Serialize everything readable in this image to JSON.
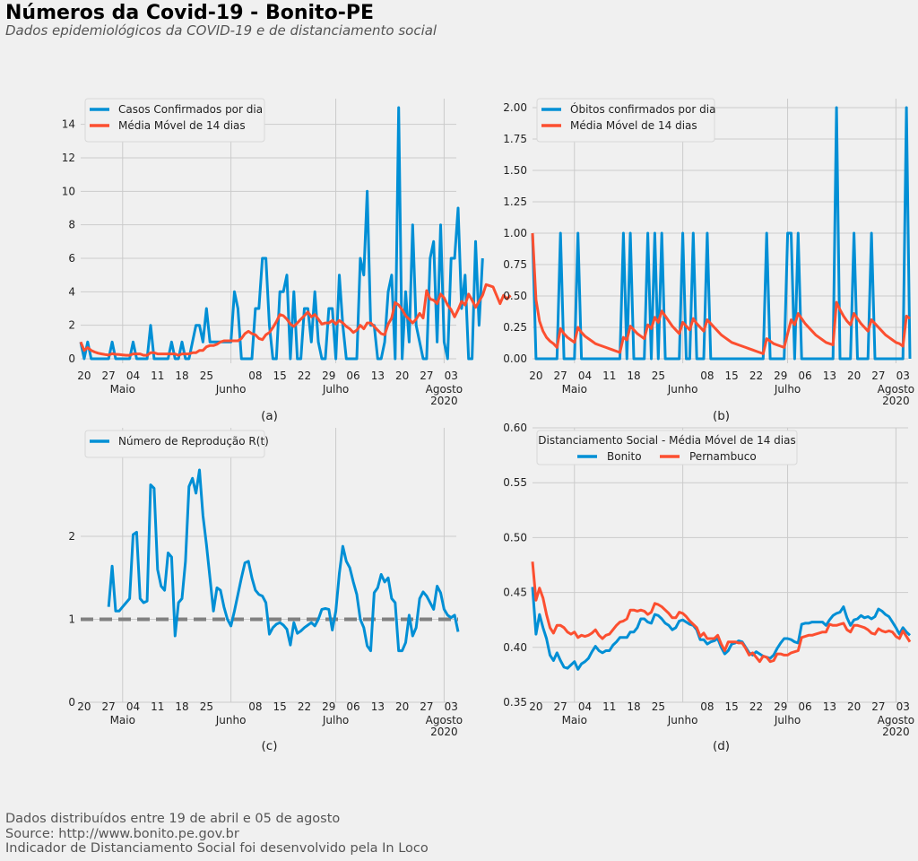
{
  "header": {
    "title": "Números da Covid-19 - Bonito-PE",
    "subtitle": "Dados epidemiológicos  da COVID-19 e de distanciamento social"
  },
  "footer": {
    "lines": [
      "Dados distribuídos entre 19 de abril e 05 de agosto",
      "Source: http://www.bonito.pe.gov.br",
      "Indicador de Distanciamento Social foi desenvolvido pela In Loco"
    ]
  },
  "colors": {
    "blue": "#008fd5",
    "red": "#fc4f30",
    "gray": "#808080",
    "grid": "#cbcbcb",
    "background": "#f0f0f0"
  },
  "chart_data": [
    {
      "id": "a",
      "type": "line",
      "caption": "(a)",
      "start_date": "2020-04-19",
      "x_day_ticks": [
        "20",
        "27",
        "04",
        "11",
        "18",
        "25",
        "08",
        "15",
        "22",
        "29",
        "06",
        "13",
        "20",
        "27",
        "03"
      ],
      "x_day_tick_dates": [
        "2020-04-20",
        "2020-04-27",
        "2020-05-04",
        "2020-05-11",
        "2020-05-18",
        "2020-05-25",
        "2020-06-08",
        "2020-06-15",
        "2020-06-22",
        "2020-06-29",
        "2020-07-06",
        "2020-07-13",
        "2020-07-20",
        "2020-07-27",
        "2020-08-03"
      ],
      "x_month_ticks": [
        {
          "label": "Maio",
          "date": "2020-05-01"
        },
        {
          "label": "Junho",
          "date": "2020-06-01"
        },
        {
          "label": "Julho",
          "date": "2020-07-01"
        },
        {
          "label": "Agosto\n2020",
          "date": "2020-08-01"
        }
      ],
      "ylim": [
        -0.7,
        15.5
      ],
      "yticks": [
        0,
        2,
        4,
        6,
        8,
        10,
        12,
        14
      ],
      "ytick_labels": [
        "0",
        "2",
        "4",
        "6",
        "8",
        "10",
        "12",
        "14"
      ],
      "legend": "top-left",
      "series": [
        {
          "name": "Casos Confirmados por dia",
          "color": "#008fd5",
          "values": [
            1,
            0,
            1,
            0,
            0,
            0,
            0,
            0,
            0,
            1,
            0,
            0,
            0,
            0,
            0,
            1,
            0,
            0,
            0,
            0,
            2,
            0,
            0,
            0,
            0,
            0,
            1,
            0,
            0,
            1,
            0,
            0,
            1,
            2,
            2,
            1,
            3,
            1,
            1,
            1,
            1,
            1,
            1,
            1,
            4,
            3,
            0,
            0,
            0,
            0,
            3,
            3,
            6,
            6,
            2,
            0,
            0,
            4,
            4,
            5,
            0,
            4,
            0,
            0,
            3,
            3,
            1,
            4,
            1,
            0,
            0,
            3,
            3,
            0,
            5,
            2,
            0,
            0,
            0,
            0,
            6,
            5,
            10,
            2,
            2,
            0,
            0,
            1,
            4,
            5,
            0,
            15,
            0,
            4,
            1,
            8,
            2,
            1,
            0,
            0,
            6,
            7,
            1,
            8,
            1,
            0,
            6,
            6,
            9,
            3,
            5,
            0,
            0,
            7,
            2,
            6
          ]
        },
        {
          "name": "Média Móvel de 14 dias",
          "color": "#fc4f30",
          "values": [
            1,
            0.5,
            0.67,
            0.5,
            0.4,
            0.33,
            0.29,
            0.25,
            0.22,
            0.3,
            0.27,
            0.25,
            0.23,
            0.21,
            0.21,
            0.29,
            0.29,
            0.29,
            0.21,
            0.21,
            0.36,
            0.36,
            0.29,
            0.29,
            0.29,
            0.29,
            0.29,
            0.29,
            0.21,
            0.29,
            0.29,
            0.29,
            0.36,
            0.36,
            0.5,
            0.5,
            0.71,
            0.79,
            0.79,
            0.86,
            1.0,
            1.07,
            1.07,
            1.07,
            1.07,
            1.07,
            1.21,
            1.5,
            1.64,
            1.5,
            1.43,
            1.21,
            1.14,
            1.43,
            1.57,
            1.86,
            2.21,
            2.64,
            2.57,
            2.36,
            2.07,
            1.93,
            2.14,
            2.36,
            2.57,
            2.79,
            2.5,
            2.64,
            2.36,
            2.07,
            2.14,
            2.14,
            2.29,
            2.07,
            2.29,
            2.14,
            1.93,
            1.79,
            1.57,
            1.71,
            2.0,
            1.79,
            2.14,
            2.14,
            1.93,
            1.71,
            1.5,
            1.43,
            2.07,
            2.43,
            3.36,
            3.21,
            2.93,
            2.57,
            2.36,
            2.14,
            2.36,
            2.71,
            2.43,
            4.07,
            3.57,
            3.5,
            3.29,
            3.86,
            3.64,
            3.21,
            2.93,
            2.5,
            2.93,
            3.43,
            3.21,
            3.86,
            3.5,
            3.07,
            3.43,
            3.79,
            4.43,
            4.36,
            4.29,
            3.79,
            3.29,
            3.79,
            3.57,
            3.79
          ]
        }
      ]
    },
    {
      "id": "b",
      "type": "line",
      "caption": "(b)",
      "start_date": "2020-04-19",
      "x_day_ticks": [
        "20",
        "27",
        "04",
        "11",
        "18",
        "25",
        "08",
        "15",
        "22",
        "29",
        "06",
        "13",
        "20",
        "27",
        "03"
      ],
      "x_month_ticks": [
        {
          "label": "Maio",
          "date": "2020-05-01"
        },
        {
          "label": "Junho",
          "date": "2020-06-01"
        },
        {
          "label": "Julho",
          "date": "2020-07-01"
        },
        {
          "label": "Agosto\n2020",
          "date": "2020-08-01"
        }
      ],
      "ylim": [
        -0.05,
        2.1
      ],
      "yticks": [
        0,
        0.25,
        0.5,
        0.75,
        1.0,
        1.25,
        1.5,
        1.75,
        2.0
      ],
      "ytick_labels": [
        "0.00",
        "0.25",
        "0.50",
        "0.75",
        "1.00",
        "1.25",
        "1.50",
        "1.75",
        "2.00"
      ],
      "legend": "top-left",
      "series": [
        {
          "name": "Óbitos confirmados por dia",
          "color": "#008fd5",
          "values": [
            1,
            0,
            0,
            0,
            0,
            0,
            0,
            0,
            1,
            0,
            0,
            0,
            0,
            1,
            0,
            0,
            0,
            0,
            0,
            0,
            0,
            0,
            0,
            0,
            0,
            0,
            1,
            0,
            1,
            0,
            0,
            0,
            0,
            1,
            0,
            1,
            0,
            1,
            0,
            0,
            0,
            0,
            0,
            1,
            0,
            0,
            1,
            0,
            0,
            0,
            1,
            0,
            0,
            0,
            0,
            0,
            0,
            0,
            0,
            0,
            0,
            0,
            0,
            0,
            0,
            0,
            0,
            1,
            0,
            0,
            0,
            0,
            0,
            1,
            1,
            0,
            1,
            0,
            0,
            0,
            0,
            0,
            0,
            0,
            0,
            0,
            0,
            2,
            0,
            0,
            0,
            0,
            1,
            0,
            0,
            0,
            0,
            1,
            0,
            0,
            0,
            0,
            0,
            0,
            0,
            0,
            0,
            2,
            0
          ]
        },
        {
          "name": "Média Móvel de 14 dias",
          "color": "#fc4f30",
          "values": [
            1.0,
            0.47,
            0.3,
            0.22,
            0.17,
            0.14,
            0.12,
            0.09,
            0.24,
            0.2,
            0.17,
            0.15,
            0.13,
            0.25,
            0.21,
            0.18,
            0.16,
            0.14,
            0.12,
            0.11,
            0.1,
            0.09,
            0.08,
            0.07,
            0.06,
            0.05,
            0.17,
            0.15,
            0.26,
            0.23,
            0.2,
            0.18,
            0.16,
            0.27,
            0.24,
            0.33,
            0.29,
            0.38,
            0.34,
            0.3,
            0.26,
            0.23,
            0.2,
            0.29,
            0.26,
            0.23,
            0.32,
            0.28,
            0.25,
            0.22,
            0.31,
            0.28,
            0.25,
            0.22,
            0.19,
            0.17,
            0.15,
            0.13,
            0.12,
            0.11,
            0.1,
            0.09,
            0.08,
            0.07,
            0.06,
            0.05,
            0.04,
            0.16,
            0.14,
            0.12,
            0.11,
            0.1,
            0.09,
            0.2,
            0.31,
            0.27,
            0.36,
            0.32,
            0.28,
            0.25,
            0.22,
            0.19,
            0.17,
            0.15,
            0.13,
            0.12,
            0.11,
            0.45,
            0.39,
            0.34,
            0.3,
            0.27,
            0.36,
            0.32,
            0.28,
            0.25,
            0.22,
            0.31,
            0.28,
            0.25,
            0.22,
            0.19,
            0.17,
            0.15,
            0.13,
            0.12,
            0.1,
            0.34,
            0.32
          ]
        }
      ]
    },
    {
      "id": "c",
      "type": "line",
      "caption": "(c)",
      "start_date": "2020-04-19",
      "x_day_ticks": [
        "20",
        "27",
        "04",
        "11",
        "18",
        "25",
        "08",
        "15",
        "22",
        "29",
        "06",
        "13",
        "20",
        "27",
        "03"
      ],
      "x_month_ticks": [
        {
          "label": "Maio",
          "date": "2020-05-01"
        },
        {
          "label": "Junho",
          "date": "2020-06-01"
        },
        {
          "label": "Julho",
          "date": "2020-07-01"
        },
        {
          "label": "Agosto\n2020",
          "date": "2020-08-01"
        }
      ],
      "ylim": [
        0,
        3.0
      ],
      "yticks": [
        0,
        1,
        2
      ],
      "ytick_labels": [
        "0",
        "1",
        "2"
      ],
      "reference_line": {
        "value": 1,
        "style": "dashed",
        "color": "#808080"
      },
      "legend": "top-left",
      "series": [
        {
          "name": "Número de Reprodução R(t)",
          "color": "#008fd5",
          "values": [
            null,
            null,
            null,
            null,
            null,
            null,
            null,
            null,
            1.15,
            1.64,
            1.1,
            1.1,
            1.15,
            1.2,
            1.25,
            2.02,
            2.05,
            1.25,
            1.2,
            1.22,
            2.62,
            2.58,
            1.6,
            1.4,
            1.35,
            1.8,
            1.75,
            0.8,
            1.2,
            1.25,
            1.7,
            2.6,
            2.7,
            2.52,
            2.8,
            2.25,
            1.9,
            1.5,
            1.1,
            1.38,
            1.35,
            1.15,
            1.0,
            0.92,
            1.1,
            1.3,
            1.5,
            1.68,
            1.7,
            1.5,
            1.35,
            1.3,
            1.28,
            1.2,
            0.82,
            0.9,
            0.94,
            0.96,
            0.93,
            0.88,
            0.69,
            0.96,
            0.83,
            0.86,
            0.9,
            0.93,
            0.96,
            0.92,
            1.0,
            1.12,
            1.13,
            1.12,
            0.87,
            1.1,
            1.55,
            1.88,
            1.7,
            1.62,
            1.45,
            1.3,
            1.0,
            0.9,
            0.68,
            0.62,
            1.32,
            1.38,
            1.54,
            1.45,
            1.5,
            1.25,
            1.2,
            0.62,
            0.62,
            0.72,
            1.05,
            0.8,
            0.9,
            1.25,
            1.33,
            1.28,
            1.2,
            1.12,
            1.4,
            1.32,
            1.12,
            1.05,
            1.02,
            1.05,
            0.85
          ]
        }
      ]
    },
    {
      "id": "d",
      "type": "line",
      "caption": "(d)",
      "start_date": "2020-04-19",
      "x_day_ticks": [
        "20",
        "27",
        "04",
        "11",
        "18",
        "25",
        "08",
        "15",
        "22",
        "29",
        "06",
        "13",
        "20",
        "27",
        "03"
      ],
      "x_month_ticks": [
        {
          "label": "Maio",
          "date": "2020-05-01"
        },
        {
          "label": "Junho",
          "date": "2020-06-01"
        },
        {
          "label": "Julho",
          "date": "2020-07-01"
        },
        {
          "label": "Agosto\n2020",
          "date": "2020-08-01"
        }
      ],
      "ylim": [
        0.35,
        0.6
      ],
      "yticks": [
        0.35,
        0.4,
        0.45,
        0.5,
        0.55,
        0.6
      ],
      "ytick_labels": [
        "0.35",
        "0.40",
        "0.45",
        "0.50",
        "0.55",
        "0.60"
      ],
      "legend": "top-left",
      "legend_title": "Distanciamento Social - Média Móvel de 14 dias",
      "series": [
        {
          "name": "Bonito",
          "color": "#008fd5",
          "values": [
            0.455,
            0.412,
            0.43,
            0.418,
            0.408,
            0.393,
            0.388,
            0.395,
            0.388,
            0.382,
            0.381,
            0.384,
            0.387,
            0.38,
            0.385,
            0.387,
            0.39,
            0.396,
            0.401,
            0.397,
            0.395,
            0.397,
            0.397,
            0.402,
            0.405,
            0.409,
            0.409,
            0.409,
            0.414,
            0.414,
            0.418,
            0.426,
            0.426,
            0.423,
            0.422,
            0.43,
            0.429,
            0.426,
            0.422,
            0.42,
            0.416,
            0.418,
            0.424,
            0.425,
            0.423,
            0.421,
            0.42,
            0.416,
            0.407,
            0.407,
            0.403,
            0.405,
            0.406,
            0.408,
            0.4,
            0.394,
            0.397,
            0.403,
            0.404,
            0.406,
            0.405,
            0.4,
            0.395,
            0.393,
            0.396,
            0.394,
            0.392,
            0.391,
            0.39,
            0.393,
            0.399,
            0.404,
            0.408,
            0.408,
            0.407,
            0.405,
            0.404,
            0.421,
            0.422,
            0.422,
            0.423,
            0.423,
            0.423,
            0.423,
            0.42,
            0.425,
            0.429,
            0.431,
            0.432,
            0.437,
            0.427,
            0.42,
            0.425,
            0.426,
            0.429,
            0.427,
            0.428,
            0.426,
            0.428,
            0.435,
            0.433,
            0.43,
            0.428,
            0.423,
            0.418,
            0.412,
            0.418,
            0.414,
            0.411
          ]
        },
        {
          "name": "Pernambuco",
          "color": "#fc4f30",
          "values": [
            0.478,
            0.443,
            0.454,
            0.445,
            0.43,
            0.418,
            0.413,
            0.42,
            0.42,
            0.418,
            0.414,
            0.412,
            0.414,
            0.409,
            0.411,
            0.41,
            0.411,
            0.413,
            0.416,
            0.411,
            0.408,
            0.411,
            0.412,
            0.416,
            0.42,
            0.423,
            0.424,
            0.426,
            0.434,
            0.434,
            0.433,
            0.434,
            0.433,
            0.43,
            0.432,
            0.44,
            0.439,
            0.437,
            0.434,
            0.431,
            0.427,
            0.427,
            0.432,
            0.431,
            0.428,
            0.424,
            0.421,
            0.418,
            0.41,
            0.413,
            0.408,
            0.408,
            0.408,
            0.411,
            0.403,
            0.397,
            0.405,
            0.405,
            0.405,
            0.404,
            0.404,
            0.399,
            0.393,
            0.395,
            0.391,
            0.387,
            0.392,
            0.391,
            0.387,
            0.388,
            0.394,
            0.394,
            0.393,
            0.393,
            0.395,
            0.396,
            0.397,
            0.409,
            0.41,
            0.411,
            0.411,
            0.412,
            0.413,
            0.414,
            0.414,
            0.421,
            0.42,
            0.42,
            0.421,
            0.422,
            0.416,
            0.414,
            0.42,
            0.42,
            0.419,
            0.418,
            0.416,
            0.413,
            0.412,
            0.417,
            0.415,
            0.414,
            0.415,
            0.414,
            0.41,
            0.408,
            0.415,
            0.41,
            0.405
          ]
        }
      ]
    }
  ]
}
